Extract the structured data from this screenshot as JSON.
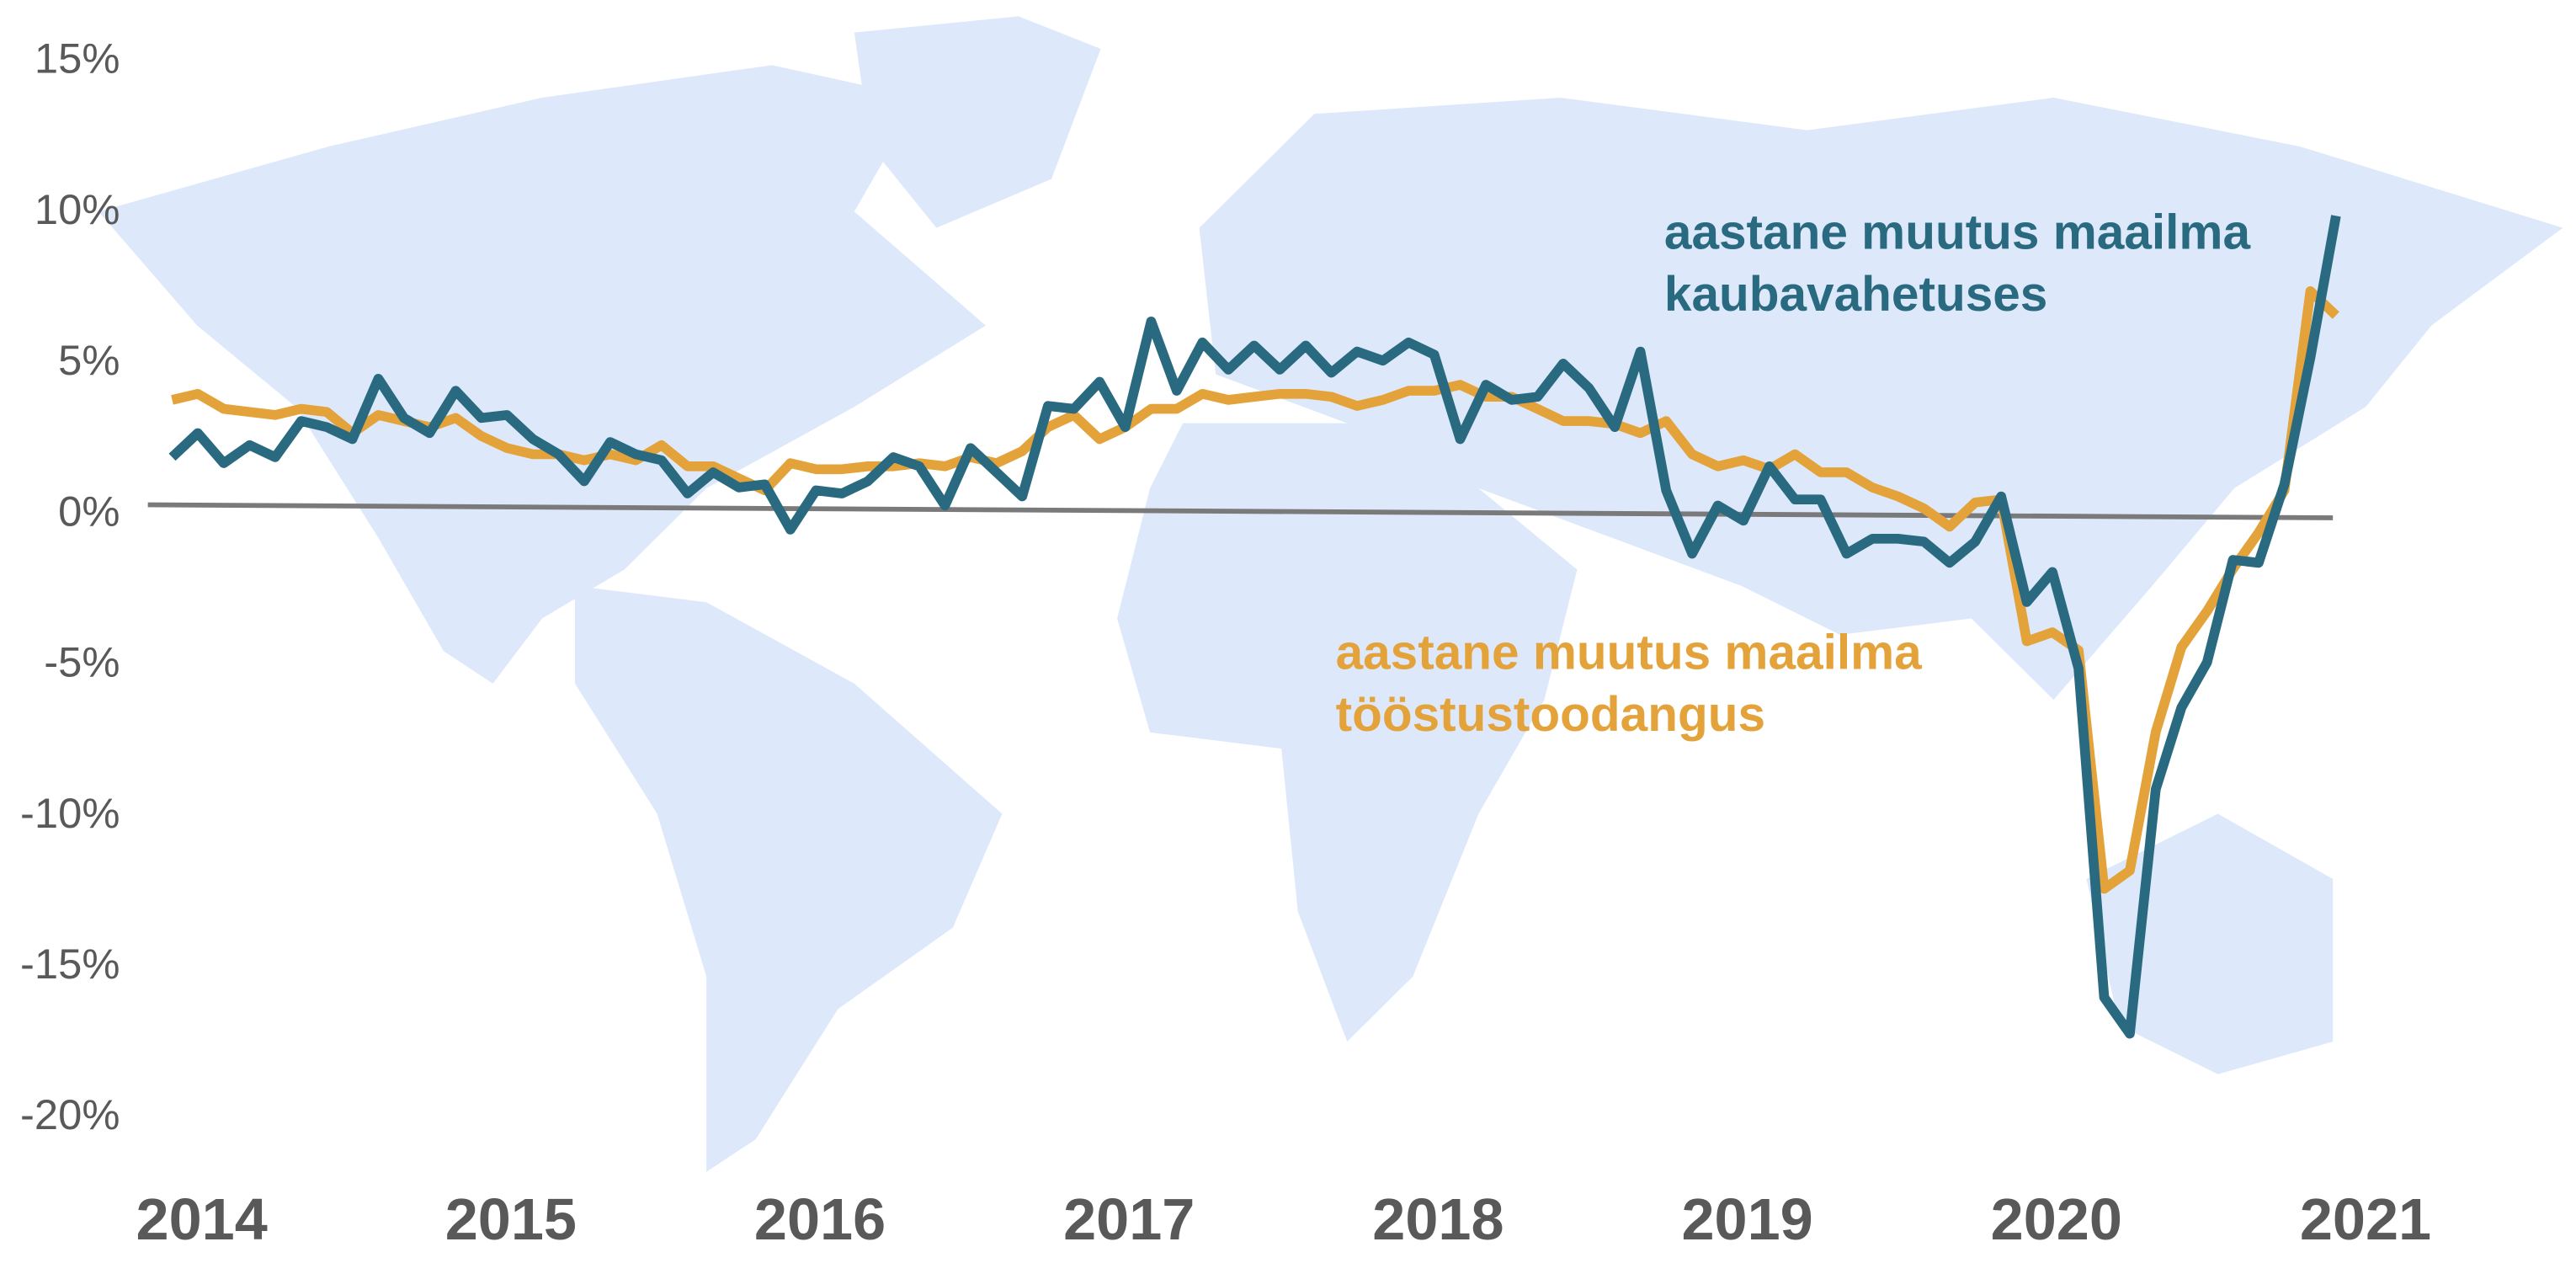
{
  "chart_data": {
    "type": "line",
    "x": [
      2014,
      2014.083,
      2014.167,
      2014.25,
      2014.333,
      2014.417,
      2014.5,
      2014.583,
      2014.667,
      2014.75,
      2014.833,
      2014.917,
      2015,
      2015.083,
      2015.167,
      2015.25,
      2015.333,
      2015.417,
      2015.5,
      2015.583,
      2015.667,
      2015.75,
      2015.833,
      2015.917,
      2016,
      2016.083,
      2016.167,
      2016.25,
      2016.333,
      2016.417,
      2016.5,
      2016.583,
      2016.667,
      2016.75,
      2016.833,
      2016.917,
      2017,
      2017.083,
      2017.167,
      2017.25,
      2017.333,
      2017.417,
      2017.5,
      2017.583,
      2017.667,
      2017.75,
      2017.833,
      2017.917,
      2018,
      2018.083,
      2018.167,
      2018.25,
      2018.333,
      2018.417,
      2018.5,
      2018.583,
      2018.667,
      2018.75,
      2018.833,
      2018.917,
      2019,
      2019.083,
      2019.167,
      2019.25,
      2019.333,
      2019.417,
      2019.5,
      2019.583,
      2019.667,
      2019.75,
      2019.833,
      2019.917,
      2020,
      2020.083,
      2020.167,
      2020.25,
      2020.333,
      2020.417,
      2020.5,
      2020.583,
      2020.667,
      2020.75,
      2020.833,
      2020.917,
      2021
    ],
    "series": [
      {
        "color": "#e3a33a",
        "values": [
          3.8,
          4.0,
          3.5,
          3.4,
          3.3,
          3.5,
          3.4,
          2.7,
          3.3,
          3.1,
          2.9,
          3.2,
          2.6,
          2.2,
          2.0,
          2.0,
          1.8,
          2.0,
          1.8,
          2.3,
          1.6,
          1.6,
          1.2,
          0.8,
          1.7,
          1.5,
          1.5,
          1.6,
          1.6,
          1.7,
          1.6,
          1.9,
          1.7,
          2.1,
          2.9,
          3.3,
          2.5,
          2.9,
          3.5,
          3.5,
          4.0,
          3.8,
          3.9,
          4.0,
          4.0,
          3.9,
          3.6,
          3.8,
          4.1,
          4.1,
          4.3,
          3.9,
          3.9,
          3.5,
          3.1,
          3.1,
          3.0,
          2.7,
          3.1,
          2.0,
          1.6,
          1.8,
          1.5,
          2.0,
          1.4,
          1.4,
          0.9,
          0.6,
          0.2,
          -0.4,
          0.4,
          0.5,
          -4.2,
          -3.9,
          -4.5,
          -12.4,
          -11.8,
          -7.2,
          -4.4,
          -3.2,
          -1.8,
          -0.6,
          0.8,
          7.4,
          6.6
        ]
      },
      {
        "color": "#2a6a80",
        "values": [
          1.9,
          2.7,
          1.7,
          2.3,
          1.9,
          3.1,
          2.9,
          2.5,
          4.5,
          3.2,
          2.7,
          4.1,
          3.2,
          3.3,
          2.5,
          2.0,
          1.1,
          2.4,
          2.0,
          1.8,
          0.7,
          1.4,
          0.9,
          1.0,
          -0.5,
          0.8,
          0.7,
          1.1,
          1.9,
          1.6,
          0.3,
          2.2,
          1.4,
          0.6,
          3.6,
          3.5,
          4.4,
          2.9,
          6.4,
          4.1,
          5.7,
          4.8,
          5.6,
          4.8,
          5.6,
          4.7,
          5.4,
          5.1,
          5.7,
          5.3,
          2.5,
          4.3,
          3.8,
          3.9,
          5.0,
          4.2,
          2.9,
          5.4,
          0.8,
          -1.3,
          0.3,
          -0.2,
          1.6,
          0.5,
          0.5,
          -1.3,
          -0.8,
          -0.8,
          -0.9,
          -1.6,
          -0.9,
          0.6,
          -2.9,
          -1.9,
          -5.1,
          -16.0,
          -17.2,
          -9.1,
          -6.4,
          -4.9,
          -1.5,
          -1.6,
          1.0,
          5.2,
          9.9
        ]
      }
    ],
    "annotations": [
      {
        "text": "aastane muutus maailma",
        "color": "#2a6a80"
      },
      {
        "text": "kaubavahetuses",
        "color": "#2a6a80"
      },
      {
        "text": "aastane muutus maailma",
        "color": "#e3a33a"
      },
      {
        "text": "tööstustoodangus",
        "color": "#e3a33a"
      }
    ],
    "xlim": [
      2013.9,
      2021.75
    ],
    "xticks": [
      2014,
      2015,
      2016,
      2017,
      2018,
      2019,
      2020,
      2021
    ],
    "ylim": [
      -22,
      16.5
    ],
    "yticks": [
      {
        "value": 15,
        "label": "15%"
      },
      {
        "value": 10,
        "label": "10%"
      },
      {
        "value": 5,
        "label": "5%"
      },
      {
        "value": 0,
        "label": "0%"
      },
      {
        "value": -5,
        "label": "-5%"
      },
      {
        "value": -10,
        "label": "-10%"
      },
      {
        "value": -15,
        "label": "-15%"
      },
      {
        "value": -20,
        "label": "-20%"
      }
    ],
    "zero_line_color": "#7a7a7a"
  }
}
